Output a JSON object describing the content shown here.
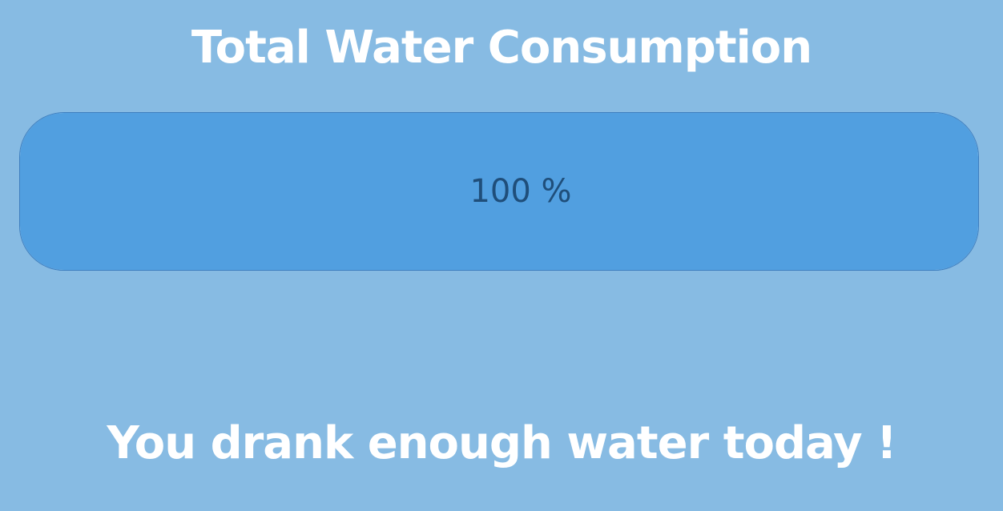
{
  "header": {
    "title": "Total Water Consumption"
  },
  "progress": {
    "percent": 100,
    "label": "100 %",
    "fill_color": "#519fe0",
    "track_color": "#d8e7f4"
  },
  "status": {
    "message": "You drank enough water today !"
  },
  "colors": {
    "background": "#87bbe3",
    "text": "#ffffff",
    "label_text": "#1f4e7a"
  }
}
